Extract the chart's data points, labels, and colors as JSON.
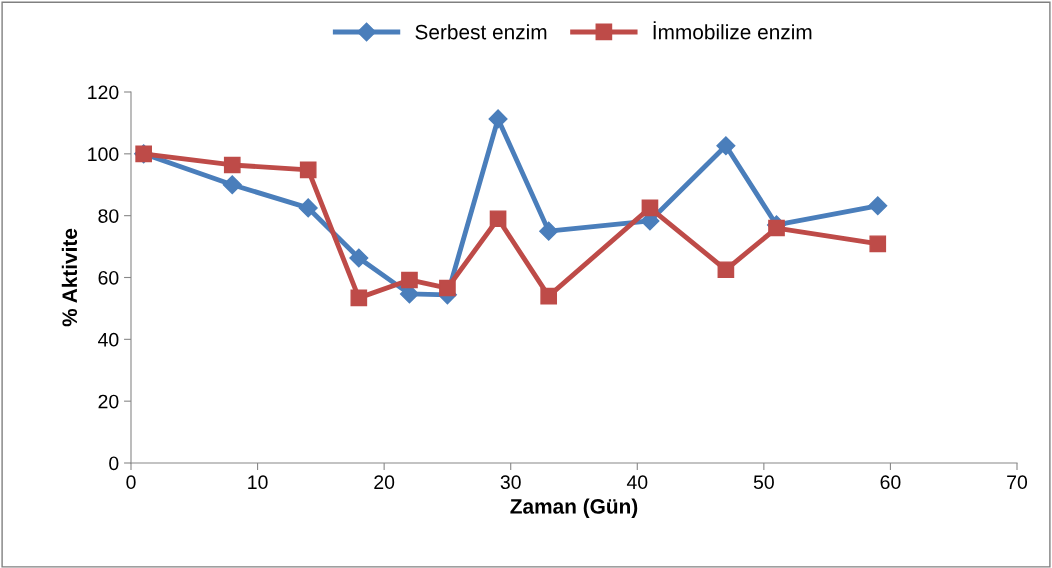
{
  "chart_data": {
    "type": "line",
    "xlabel": "Zaman (Gün)",
    "ylabel": "% Aktivite",
    "x": [
      1,
      8,
      14,
      18,
      22,
      25,
      29,
      33,
      41,
      47,
      51,
      59
    ],
    "series": [
      {
        "name": "Serbest enzim",
        "color": "#4a7ebb",
        "marker": "diamond",
        "values": [
          100,
          90,
          82.5,
          66.3,
          54.7,
          54.4,
          111.3,
          75,
          78.3,
          102.6,
          77,
          83.2
        ]
      },
      {
        "name": "İmmobilize enzim",
        "color": "#be4b48",
        "marker": "square",
        "values": [
          100,
          96.4,
          94.8,
          53.4,
          59.2,
          56.6,
          79,
          54,
          82.5,
          62.5,
          76,
          70.9
        ]
      }
    ],
    "xlim": [
      0,
      70
    ],
    "xticks": [
      0,
      10,
      20,
      30,
      40,
      50,
      60,
      70
    ],
    "ylim": [
      0,
      120
    ],
    "yticks": [
      0,
      20,
      40,
      60,
      80,
      100,
      120
    ],
    "grid": false,
    "legend": "top",
    "line_style": "solid"
  }
}
